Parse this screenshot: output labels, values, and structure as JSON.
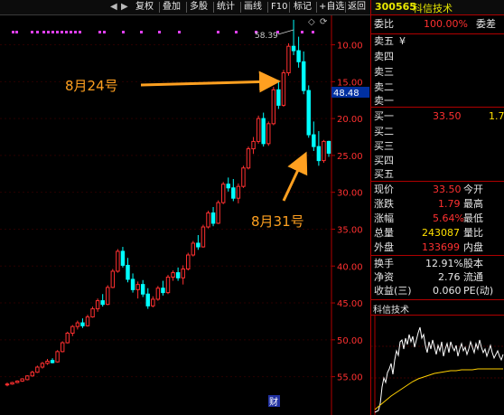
{
  "toolbar": {
    "items": [
      "复权",
      "叠加",
      "多股",
      "统计",
      "画线",
      "F10",
      "标记",
      "+自选",
      "返回"
    ]
  },
  "chart": {
    "y_ticks": [
      "55.00",
      "50.00",
      "45.00",
      "40.00",
      "35.00",
      "30.00",
      "25.00",
      "20.00",
      "15.00",
      "10.00"
    ],
    "high_label": "58.39",
    "current_price_tag": "48.48",
    "annotation_aug24": "8月24号",
    "annotation_aug31": "8月31号",
    "bottom_marker": "财"
  },
  "chart_data": {
    "type": "candlestick",
    "ylim": [
      7.5,
      58.5
    ],
    "y_ticks": [
      10,
      15,
      20,
      25,
      30,
      35,
      40,
      45,
      50,
      55
    ],
    "candles": [
      {
        "o": 8.9,
        "h": 9.2,
        "l": 8.7,
        "c": 9.0
      },
      {
        "o": 9.0,
        "h": 9.3,
        "l": 8.9,
        "c": 9.2
      },
      {
        "o": 9.2,
        "h": 9.5,
        "l": 9.1,
        "c": 9.4
      },
      {
        "o": 9.4,
        "h": 9.8,
        "l": 9.3,
        "c": 9.7
      },
      {
        "o": 9.6,
        "h": 10.2,
        "l": 9.5,
        "c": 10.1
      },
      {
        "o": 10.1,
        "h": 10.8,
        "l": 10.0,
        "c": 10.6
      },
      {
        "o": 10.6,
        "h": 11.5,
        "l": 10.5,
        "c": 11.3
      },
      {
        "o": 11.3,
        "h": 12.0,
        "l": 11.1,
        "c": 11.8
      },
      {
        "o": 11.8,
        "h": 12.4,
        "l": 11.6,
        "c": 12.1
      },
      {
        "o": 12.2,
        "h": 12.5,
        "l": 11.8,
        "c": 11.9
      },
      {
        "o": 12.0,
        "h": 13.6,
        "l": 11.9,
        "c": 13.4
      },
      {
        "o": 13.4,
        "h": 14.8,
        "l": 13.3,
        "c": 14.6
      },
      {
        "o": 14.6,
        "h": 16.1,
        "l": 14.5,
        "c": 15.9
      },
      {
        "o": 15.9,
        "h": 17.0,
        "l": 15.5,
        "c": 16.8
      },
      {
        "o": 16.8,
        "h": 17.6,
        "l": 16.4,
        "c": 17.3
      },
      {
        "o": 17.3,
        "h": 17.9,
        "l": 16.6,
        "c": 16.9
      },
      {
        "o": 16.9,
        "h": 18.4,
        "l": 16.8,
        "c": 18.1
      },
      {
        "o": 18.1,
        "h": 19.5,
        "l": 18.0,
        "c": 19.2
      },
      {
        "o": 19.2,
        "h": 20.6,
        "l": 18.8,
        "c": 20.3
      },
      {
        "o": 20.3,
        "h": 21.2,
        "l": 19.5,
        "c": 19.8
      },
      {
        "o": 19.8,
        "h": 22.4,
        "l": 19.7,
        "c": 22.1
      },
      {
        "o": 22.1,
        "h": 24.6,
        "l": 22.0,
        "c": 24.3
      },
      {
        "o": 24.3,
        "h": 27.3,
        "l": 24.1,
        "c": 27.0
      },
      {
        "o": 27.0,
        "h": 27.6,
        "l": 24.8,
        "c": 25.1
      },
      {
        "o": 25.1,
        "h": 26.1,
        "l": 22.8,
        "c": 23.2
      },
      {
        "o": 23.2,
        "h": 24.0,
        "l": 21.4,
        "c": 21.8
      },
      {
        "o": 21.8,
        "h": 22.9,
        "l": 20.6,
        "c": 22.5
      },
      {
        "o": 22.5,
        "h": 23.1,
        "l": 20.8,
        "c": 21.2
      },
      {
        "o": 21.2,
        "h": 22.0,
        "l": 19.2,
        "c": 19.6
      },
      {
        "o": 19.6,
        "h": 20.9,
        "l": 19.4,
        "c": 20.5
      },
      {
        "o": 20.5,
        "h": 22.3,
        "l": 20.3,
        "c": 22.0
      },
      {
        "o": 22.0,
        "h": 23.0,
        "l": 21.0,
        "c": 21.4
      },
      {
        "o": 21.4,
        "h": 23.8,
        "l": 21.2,
        "c": 23.5
      },
      {
        "o": 23.5,
        "h": 24.4,
        "l": 23.0,
        "c": 24.1
      },
      {
        "o": 24.1,
        "h": 24.8,
        "l": 23.0,
        "c": 23.4
      },
      {
        "o": 23.4,
        "h": 25.1,
        "l": 22.5,
        "c": 24.6
      },
      {
        "o": 24.6,
        "h": 26.8,
        "l": 24.4,
        "c": 26.5
      },
      {
        "o": 26.5,
        "h": 28.4,
        "l": 26.3,
        "c": 28.1
      },
      {
        "o": 28.1,
        "h": 29.2,
        "l": 27.2,
        "c": 27.6
      },
      {
        "o": 27.6,
        "h": 30.6,
        "l": 27.5,
        "c": 30.3
      },
      {
        "o": 30.3,
        "h": 32.5,
        "l": 30.1,
        "c": 32.2
      },
      {
        "o": 32.2,
        "h": 33.0,
        "l": 30.4,
        "c": 30.8
      },
      {
        "o": 30.8,
        "h": 33.9,
        "l": 30.7,
        "c": 33.6
      },
      {
        "o": 33.6,
        "h": 36.4,
        "l": 33.4,
        "c": 36.1
      },
      {
        "o": 36.1,
        "h": 37.0,
        "l": 35.1,
        "c": 35.6
      },
      {
        "o": 35.6,
        "h": 36.8,
        "l": 33.8,
        "c": 34.2
      },
      {
        "o": 34.2,
        "h": 36.2,
        "l": 33.5,
        "c": 35.8
      },
      {
        "o": 35.8,
        "h": 38.6,
        "l": 35.6,
        "c": 38.3
      },
      {
        "o": 38.3,
        "h": 41.2,
        "l": 38.1,
        "c": 40.9
      },
      {
        "o": 40.9,
        "h": 42.5,
        "l": 40.2,
        "c": 41.9
      },
      {
        "o": 41.9,
        "h": 45.4,
        "l": 41.6,
        "c": 45.0
      },
      {
        "o": 45.0,
        "h": 45.8,
        "l": 41.2,
        "c": 41.6
      },
      {
        "o": 41.6,
        "h": 44.6,
        "l": 41.3,
        "c": 44.3
      },
      {
        "o": 44.3,
        "h": 49.3,
        "l": 44.1,
        "c": 48.9
      },
      {
        "o": 48.9,
        "h": 50.2,
        "l": 46.3,
        "c": 46.8
      },
      {
        "o": 46.8,
        "h": 51.6,
        "l": 46.6,
        "c": 51.2
      },
      {
        "o": 51.2,
        "h": 55.2,
        "l": 50.8,
        "c": 54.8
      },
      {
        "o": 54.8,
        "h": 58.39,
        "l": 53.6,
        "c": 54.2
      },
      {
        "o": 54.2,
        "h": 56.1,
        "l": 51.9,
        "c": 52.7
      },
      {
        "o": 52.7,
        "h": 54.1,
        "l": 48.3,
        "c": 48.8
      },
      {
        "o": 48.8,
        "h": 49.5,
        "l": 42.4,
        "c": 42.8
      },
      {
        "o": 42.8,
        "h": 44.6,
        "l": 40.6,
        "c": 41.2
      },
      {
        "o": 41.2,
        "h": 43.3,
        "l": 38.6,
        "c": 39.3
      },
      {
        "o": 39.3,
        "h": 42.1,
        "l": 39.0,
        "c": 41.9
      },
      {
        "o": 41.9,
        "h": 42.0,
        "l": 39.8,
        "c": 40.3
      }
    ]
  },
  "stock": {
    "code": "300565",
    "name": "科信技术"
  },
  "orderbook": {
    "weibi_label": "委比",
    "weibi_value": "100.00%",
    "weicha_label": "委差",
    "sell_labels": [
      "卖五",
      "卖四",
      "卖三",
      "卖二",
      "卖一"
    ],
    "sell5_extra": "¥",
    "buy_labels": [
      "买一",
      "买二",
      "买三",
      "买四",
      "买五"
    ],
    "buy1_price": "33.50",
    "buy1_volume": "1.7"
  },
  "quote": {
    "xianjia_label": "现价",
    "xianjia": "33.50",
    "jinkai_label": "今开",
    "zhangdie_label": "涨跌",
    "zhangdie": "1.79",
    "zuigao_label": "最高",
    "zhangfu_label": "涨幅",
    "zhangfu": "5.64%",
    "zuidi_label": "最低",
    "zongliang_label": "总量",
    "zongliang": "243087",
    "liangbi_label": "量比",
    "waipan_label": "外盘",
    "waipan": "133699",
    "neipan_label": "内盘",
    "huanshou_label": "换手",
    "huanshou": "12.91%",
    "guben_label": "股本",
    "jingzi_label": "净资",
    "jingzi": "2.76",
    "liutong_label": "流通",
    "shouyi_label": "收益(三)",
    "shouyi": "0.060",
    "pe_label": "PE(动)"
  },
  "mini_chart": {
    "title": "科信技术"
  },
  "colors": {
    "up": "#ff3030",
    "down": "#00ffff",
    "annotation": "#ffa020",
    "axis": "#b00000"
  }
}
